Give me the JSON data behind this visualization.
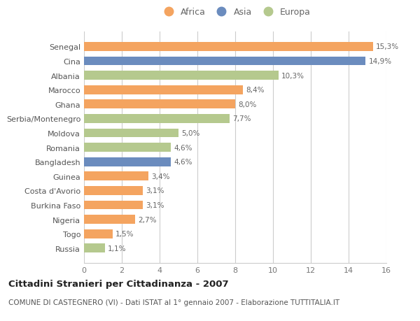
{
  "countries": [
    "Senegal",
    "Cina",
    "Albania",
    "Marocco",
    "Ghana",
    "Serbia/Montenegro",
    "Moldova",
    "Romania",
    "Bangladesh",
    "Guinea",
    "Costa d'Avorio",
    "Burkina Faso",
    "Nigeria",
    "Togo",
    "Russia"
  ],
  "values": [
    15.3,
    14.9,
    10.3,
    8.4,
    8.0,
    7.7,
    5.0,
    4.6,
    4.6,
    3.4,
    3.1,
    3.1,
    2.7,
    1.5,
    1.1
  ],
  "labels": [
    "15,3%",
    "14,9%",
    "10,3%",
    "8,4%",
    "8,0%",
    "7,7%",
    "5,0%",
    "4,6%",
    "4,6%",
    "3,4%",
    "3,1%",
    "3,1%",
    "2,7%",
    "1,5%",
    "1,1%"
  ],
  "continents": [
    "Africa",
    "Asia",
    "Europa",
    "Africa",
    "Africa",
    "Europa",
    "Europa",
    "Europa",
    "Asia",
    "Africa",
    "Africa",
    "Africa",
    "Africa",
    "Africa",
    "Europa"
  ],
  "colors": {
    "Africa": "#F4A460",
    "Asia": "#6B8CBE",
    "Europa": "#B5C98E"
  },
  "xlim": [
    0,
    16
  ],
  "xticks": [
    0,
    2,
    4,
    6,
    8,
    10,
    12,
    14,
    16
  ],
  "title": "Cittadini Stranieri per Cittadinanza - 2007",
  "subtitle": "COMUNE DI CASTEGNERO (VI) - Dati ISTAT al 1° gennaio 2007 - Elaborazione TUTTITALIA.IT",
  "background_color": "#ffffff",
  "grid_color": "#cccccc",
  "bar_height": 0.62,
  "title_fontsize": 9.5,
  "subtitle_fontsize": 7.5,
  "label_fontsize": 7.5,
  "tick_fontsize": 8,
  "legend_fontsize": 9
}
